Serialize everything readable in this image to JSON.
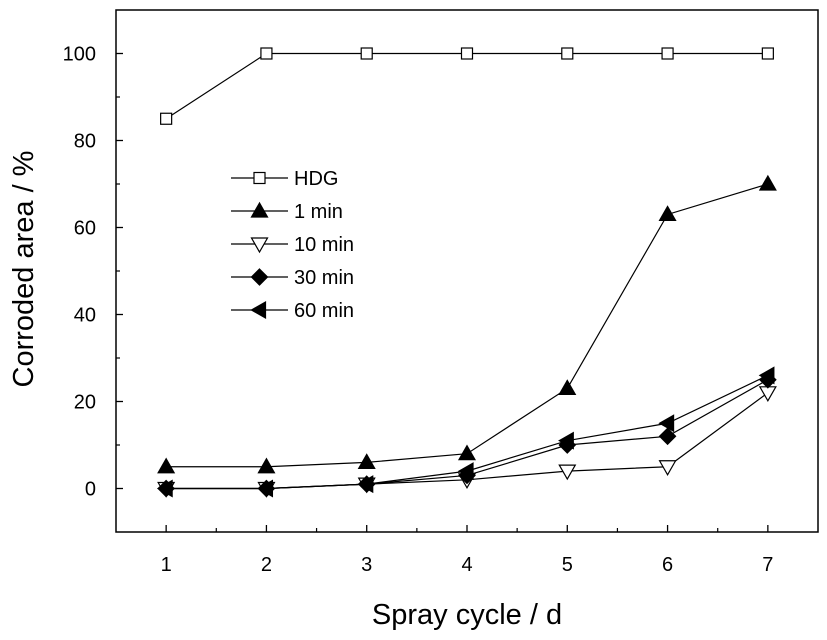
{
  "chart_data": {
    "type": "line",
    "xlabel": "Spray cycle / d",
    "ylabel": "Corroded area / %",
    "xlim": [
      0.5,
      7.5
    ],
    "ylim": [
      -10,
      110
    ],
    "xticks": [
      1,
      2,
      3,
      4,
      5,
      6,
      7
    ],
    "xtick_labels": [
      "1",
      "2",
      "3",
      "4",
      "5",
      "6",
      "7"
    ],
    "yticks": [
      0,
      20,
      40,
      60,
      80,
      100
    ],
    "ytick_labels": [
      "0",
      "20",
      "40",
      "60",
      "80",
      "100"
    ],
    "grid": false,
    "legend_position": "upper-left",
    "x": [
      1,
      2,
      3,
      4,
      5,
      6,
      7
    ],
    "series": [
      {
        "name": "HDG",
        "marker": "square-open",
        "values": [
          85,
          100,
          100,
          100,
          100,
          100,
          100
        ]
      },
      {
        "name": "1 min",
        "marker": "triangle-up-filled",
        "values": [
          5,
          5,
          6,
          8,
          23,
          63,
          70
        ]
      },
      {
        "name": "10 min",
        "marker": "triangle-down-open",
        "values": [
          0,
          0,
          1,
          2,
          4,
          5,
          22
        ]
      },
      {
        "name": "30 min",
        "marker": "diamond-filled",
        "values": [
          0,
          0,
          1,
          3,
          10,
          12,
          25
        ]
      },
      {
        "name": "60 min",
        "marker": "triangle-left-filled",
        "values": [
          0,
          0,
          1,
          4,
          11,
          15,
          26
        ]
      }
    ]
  }
}
